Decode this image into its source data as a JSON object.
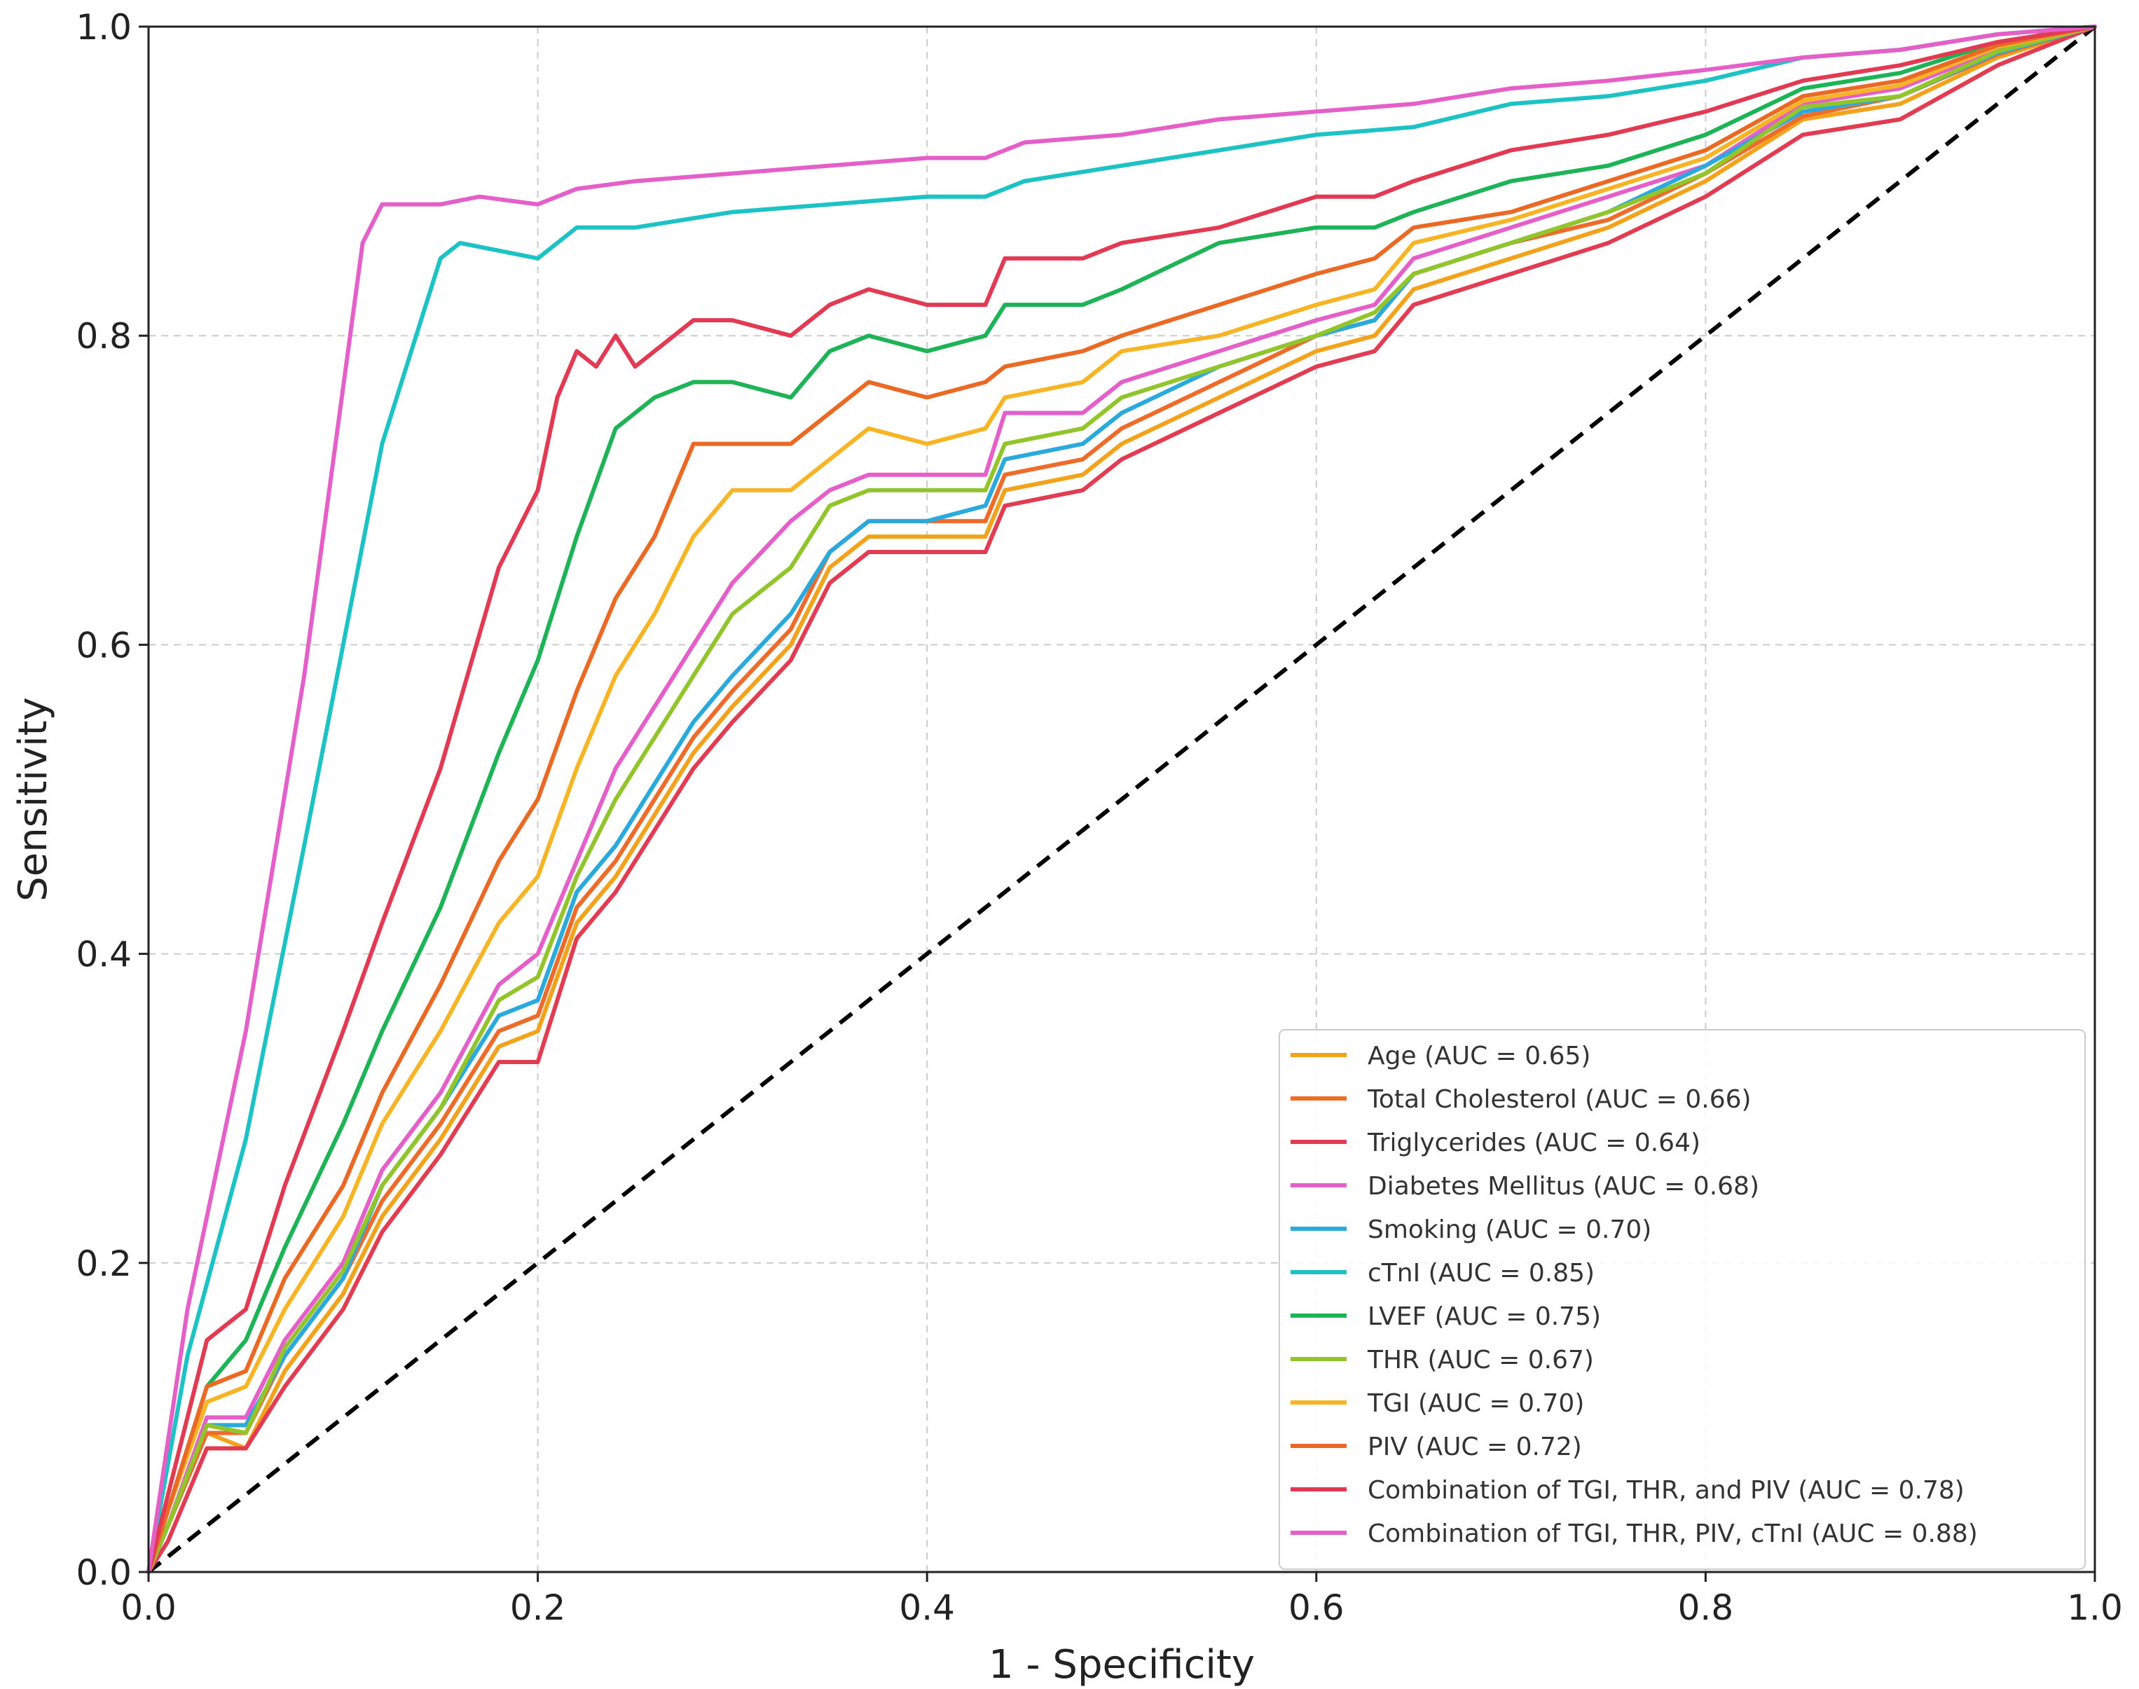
{
  "chart_data": {
    "type": "line",
    "title": "",
    "xlabel": "1 - Specificity",
    "ylabel": "Sensitivity",
    "xlim": [
      0,
      1
    ],
    "ylim": [
      0,
      1
    ],
    "xticks": [
      "0.0",
      "0.2",
      "0.4",
      "0.6",
      "0.8",
      "1.0"
    ],
    "yticks": [
      "0.0",
      "0.2",
      "0.4",
      "0.6",
      "0.8",
      "1.0"
    ],
    "grid": true,
    "legend_position": "bottom-right",
    "reference_line": {
      "name": "chance",
      "x": [
        0,
        1
      ],
      "y": [
        0,
        1
      ],
      "color": "#000000",
      "style": "dashed"
    },
    "series": [
      {
        "name": "Age (AUC = 0.65)",
        "color": "#f2a21b",
        "x": [
          0,
          0.01,
          0.03,
          0.05,
          0.07,
          0.1,
          0.12,
          0.15,
          0.18,
          0.2,
          0.22,
          0.24,
          0.26,
          0.28,
          0.3,
          0.33,
          0.35,
          0.37,
          0.4,
          0.43,
          0.44,
          0.48,
          0.5,
          0.55,
          0.6,
          0.63,
          0.65,
          0.7,
          0.75,
          0.8,
          0.85,
          0.9,
          0.95,
          1.0
        ],
        "y": [
          0,
          0.03,
          0.09,
          0.08,
          0.13,
          0.18,
          0.23,
          0.28,
          0.34,
          0.35,
          0.42,
          0.45,
          0.49,
          0.53,
          0.56,
          0.6,
          0.65,
          0.67,
          0.67,
          0.67,
          0.7,
          0.71,
          0.73,
          0.76,
          0.79,
          0.8,
          0.83,
          0.85,
          0.87,
          0.9,
          0.94,
          0.95,
          0.98,
          1.0
        ]
      },
      {
        "name": "Total Cholesterol (AUC = 0.66)",
        "color": "#ee6b2a",
        "x": [
          0,
          0.01,
          0.03,
          0.05,
          0.07,
          0.1,
          0.12,
          0.15,
          0.18,
          0.2,
          0.22,
          0.24,
          0.26,
          0.28,
          0.3,
          0.33,
          0.35,
          0.37,
          0.4,
          0.43,
          0.44,
          0.48,
          0.5,
          0.55,
          0.6,
          0.63,
          0.65,
          0.7,
          0.75,
          0.8,
          0.85,
          0.9,
          0.95,
          1.0
        ],
        "y": [
          0,
          0.03,
          0.09,
          0.09,
          0.14,
          0.19,
          0.24,
          0.29,
          0.35,
          0.36,
          0.43,
          0.46,
          0.5,
          0.54,
          0.57,
          0.61,
          0.66,
          0.68,
          0.68,
          0.68,
          0.71,
          0.72,
          0.74,
          0.77,
          0.8,
          0.81,
          0.84,
          0.86,
          0.875,
          0.905,
          0.942,
          0.955,
          0.982,
          1.0
        ]
      },
      {
        "name": "Triglycerides (AUC = 0.64)",
        "color": "#e23c52",
        "x": [
          0,
          0.01,
          0.03,
          0.05,
          0.07,
          0.1,
          0.12,
          0.15,
          0.18,
          0.2,
          0.22,
          0.24,
          0.26,
          0.28,
          0.3,
          0.33,
          0.35,
          0.37,
          0.4,
          0.43,
          0.44,
          0.48,
          0.5,
          0.55,
          0.6,
          0.63,
          0.65,
          0.7,
          0.75,
          0.8,
          0.85,
          0.9,
          0.95,
          1.0
        ],
        "y": [
          0,
          0.02,
          0.08,
          0.08,
          0.12,
          0.17,
          0.22,
          0.27,
          0.33,
          0.33,
          0.41,
          0.44,
          0.48,
          0.52,
          0.55,
          0.59,
          0.64,
          0.66,
          0.66,
          0.66,
          0.69,
          0.7,
          0.72,
          0.75,
          0.78,
          0.79,
          0.82,
          0.84,
          0.86,
          0.89,
          0.93,
          0.94,
          0.975,
          1.0
        ]
      },
      {
        "name": "Diabetes Mellitus (AUC = 0.68)",
        "color": "#e55fc9",
        "x": [
          0,
          0.01,
          0.03,
          0.05,
          0.07,
          0.1,
          0.12,
          0.15,
          0.18,
          0.2,
          0.22,
          0.24,
          0.26,
          0.28,
          0.3,
          0.33,
          0.35,
          0.37,
          0.4,
          0.43,
          0.44,
          0.48,
          0.5,
          0.55,
          0.6,
          0.63,
          0.65,
          0.7,
          0.75,
          0.8,
          0.85,
          0.9,
          0.95,
          1.0
        ],
        "y": [
          0,
          0.03,
          0.1,
          0.1,
          0.15,
          0.2,
          0.26,
          0.31,
          0.38,
          0.4,
          0.46,
          0.52,
          0.56,
          0.6,
          0.64,
          0.68,
          0.7,
          0.71,
          0.71,
          0.71,
          0.75,
          0.75,
          0.77,
          0.79,
          0.81,
          0.82,
          0.85,
          0.87,
          0.89,
          0.91,
          0.95,
          0.96,
          0.985,
          1.0
        ]
      },
      {
        "name": "Smoking (AUC = 0.70)",
        "color": "#2aa9dc",
        "x": [
          0,
          0.01,
          0.03,
          0.05,
          0.07,
          0.1,
          0.12,
          0.15,
          0.18,
          0.2,
          0.22,
          0.24,
          0.26,
          0.28,
          0.3,
          0.33,
          0.35,
          0.37,
          0.4,
          0.43,
          0.44,
          0.48,
          0.5,
          0.55,
          0.6,
          0.63,
          0.65,
          0.7,
          0.75,
          0.8,
          0.85,
          0.9,
          0.95,
          1.0
        ],
        "y": [
          0,
          0.03,
          0.095,
          0.095,
          0.14,
          0.19,
          0.25,
          0.3,
          0.36,
          0.37,
          0.44,
          0.47,
          0.51,
          0.55,
          0.58,
          0.62,
          0.66,
          0.68,
          0.68,
          0.69,
          0.72,
          0.73,
          0.75,
          0.78,
          0.8,
          0.81,
          0.84,
          0.86,
          0.88,
          0.91,
          0.945,
          0.955,
          0.983,
          1.0
        ]
      },
      {
        "name": "cTnI (AUC = 0.85)",
        "color": "#1cc2c4",
        "x": [
          0,
          0.02,
          0.05,
          0.08,
          0.12,
          0.15,
          0.16,
          0.2,
          0.22,
          0.25,
          0.3,
          0.35,
          0.4,
          0.43,
          0.45,
          0.5,
          0.55,
          0.6,
          0.65,
          0.7,
          0.75,
          0.8,
          0.85,
          0.9,
          0.95,
          1.0
        ],
        "y": [
          0,
          0.14,
          0.28,
          0.47,
          0.73,
          0.85,
          0.86,
          0.85,
          0.87,
          0.87,
          0.88,
          0.885,
          0.89,
          0.89,
          0.9,
          0.91,
          0.92,
          0.93,
          0.935,
          0.95,
          0.955,
          0.965,
          0.98,
          0.985,
          0.995,
          1.0
        ]
      },
      {
        "name": "LVEF (AUC = 0.75)",
        "color": "#1db356",
        "x": [
          0,
          0.01,
          0.03,
          0.05,
          0.07,
          0.1,
          0.12,
          0.15,
          0.18,
          0.2,
          0.22,
          0.24,
          0.26,
          0.28,
          0.3,
          0.33,
          0.35,
          0.37,
          0.4,
          0.43,
          0.44,
          0.48,
          0.5,
          0.55,
          0.6,
          0.63,
          0.65,
          0.7,
          0.75,
          0.8,
          0.85,
          0.9,
          0.95,
          1.0
        ],
        "y": [
          0,
          0.04,
          0.12,
          0.15,
          0.21,
          0.29,
          0.35,
          0.43,
          0.53,
          0.59,
          0.67,
          0.74,
          0.76,
          0.77,
          0.77,
          0.76,
          0.79,
          0.8,
          0.79,
          0.8,
          0.82,
          0.82,
          0.83,
          0.86,
          0.87,
          0.87,
          0.88,
          0.9,
          0.91,
          0.93,
          0.96,
          0.97,
          0.99,
          1.0
        ]
      },
      {
        "name": "THR (AUC = 0.67)",
        "color": "#92c42c",
        "x": [
          0,
          0.01,
          0.03,
          0.05,
          0.07,
          0.1,
          0.12,
          0.15,
          0.18,
          0.2,
          0.22,
          0.24,
          0.26,
          0.28,
          0.3,
          0.33,
          0.35,
          0.37,
          0.4,
          0.43,
          0.44,
          0.48,
          0.5,
          0.55,
          0.6,
          0.63,
          0.65,
          0.7,
          0.75,
          0.8,
          0.85,
          0.9,
          0.95,
          1.0
        ],
        "y": [
          0,
          0.03,
          0.095,
          0.09,
          0.145,
          0.195,
          0.25,
          0.3,
          0.37,
          0.385,
          0.45,
          0.5,
          0.54,
          0.58,
          0.62,
          0.65,
          0.69,
          0.7,
          0.7,
          0.7,
          0.73,
          0.74,
          0.76,
          0.78,
          0.8,
          0.815,
          0.84,
          0.86,
          0.88,
          0.905,
          0.948,
          0.955,
          0.984,
          1.0
        ]
      },
      {
        "name": "TGI (AUC = 0.70)",
        "color": "#f7b526",
        "x": [
          0,
          0.01,
          0.03,
          0.05,
          0.07,
          0.1,
          0.12,
          0.15,
          0.18,
          0.2,
          0.22,
          0.24,
          0.26,
          0.28,
          0.3,
          0.33,
          0.35,
          0.37,
          0.4,
          0.43,
          0.44,
          0.48,
          0.5,
          0.55,
          0.6,
          0.63,
          0.65,
          0.7,
          0.75,
          0.8,
          0.85,
          0.9,
          0.95,
          1.0
        ],
        "y": [
          0,
          0.04,
          0.11,
          0.12,
          0.17,
          0.23,
          0.29,
          0.35,
          0.42,
          0.45,
          0.52,
          0.58,
          0.62,
          0.67,
          0.7,
          0.7,
          0.72,
          0.74,
          0.73,
          0.74,
          0.76,
          0.77,
          0.79,
          0.8,
          0.82,
          0.83,
          0.86,
          0.875,
          0.895,
          0.915,
          0.952,
          0.962,
          0.987,
          1.0
        ]
      },
      {
        "name": "PIV (AUC = 0.72)",
        "color": "#ea6a25",
        "x": [
          0,
          0.01,
          0.03,
          0.05,
          0.07,
          0.1,
          0.12,
          0.15,
          0.18,
          0.2,
          0.22,
          0.24,
          0.26,
          0.28,
          0.3,
          0.33,
          0.35,
          0.37,
          0.4,
          0.43,
          0.44,
          0.48,
          0.5,
          0.55,
          0.6,
          0.63,
          0.65,
          0.7,
          0.75,
          0.8,
          0.85,
          0.9,
          0.95,
          1.0
        ],
        "y": [
          0,
          0.04,
          0.12,
          0.13,
          0.19,
          0.25,
          0.31,
          0.38,
          0.46,
          0.5,
          0.57,
          0.63,
          0.67,
          0.73,
          0.73,
          0.73,
          0.75,
          0.77,
          0.76,
          0.77,
          0.78,
          0.79,
          0.8,
          0.82,
          0.84,
          0.85,
          0.87,
          0.88,
          0.9,
          0.92,
          0.955,
          0.965,
          0.988,
          1.0
        ]
      },
      {
        "name": "Combination of TGI, THR, and PIV (AUC = 0.78)",
        "color": "#e23a52",
        "x": [
          0,
          0.01,
          0.03,
          0.05,
          0.07,
          0.1,
          0.12,
          0.15,
          0.18,
          0.2,
          0.21,
          0.22,
          0.23,
          0.24,
          0.25,
          0.28,
          0.3,
          0.33,
          0.35,
          0.37,
          0.4,
          0.43,
          0.44,
          0.48,
          0.5,
          0.55,
          0.6,
          0.63,
          0.65,
          0.7,
          0.75,
          0.8,
          0.85,
          0.9,
          0.95,
          1.0
        ],
        "y": [
          0,
          0.05,
          0.15,
          0.17,
          0.25,
          0.35,
          0.42,
          0.52,
          0.65,
          0.7,
          0.76,
          0.79,
          0.78,
          0.8,
          0.78,
          0.81,
          0.81,
          0.8,
          0.82,
          0.83,
          0.82,
          0.82,
          0.85,
          0.85,
          0.86,
          0.87,
          0.89,
          0.89,
          0.9,
          0.92,
          0.93,
          0.945,
          0.965,
          0.975,
          0.99,
          1.0
        ]
      },
      {
        "name": "Combination of TGI, THR, PIV, cTnI (AUC = 0.88)",
        "color": "#e55fc9",
        "x": [
          0,
          0.02,
          0.05,
          0.08,
          0.11,
          0.12,
          0.15,
          0.17,
          0.2,
          0.22,
          0.25,
          0.3,
          0.35,
          0.4,
          0.43,
          0.45,
          0.5,
          0.55,
          0.6,
          0.65,
          0.7,
          0.75,
          0.8,
          0.85,
          0.9,
          0.95,
          1.0
        ],
        "y": [
          0,
          0.17,
          0.35,
          0.58,
          0.86,
          0.885,
          0.885,
          0.89,
          0.885,
          0.895,
          0.9,
          0.905,
          0.91,
          0.915,
          0.915,
          0.925,
          0.93,
          0.94,
          0.945,
          0.95,
          0.96,
          0.965,
          0.972,
          0.98,
          0.985,
          0.995,
          1.0
        ]
      }
    ]
  }
}
